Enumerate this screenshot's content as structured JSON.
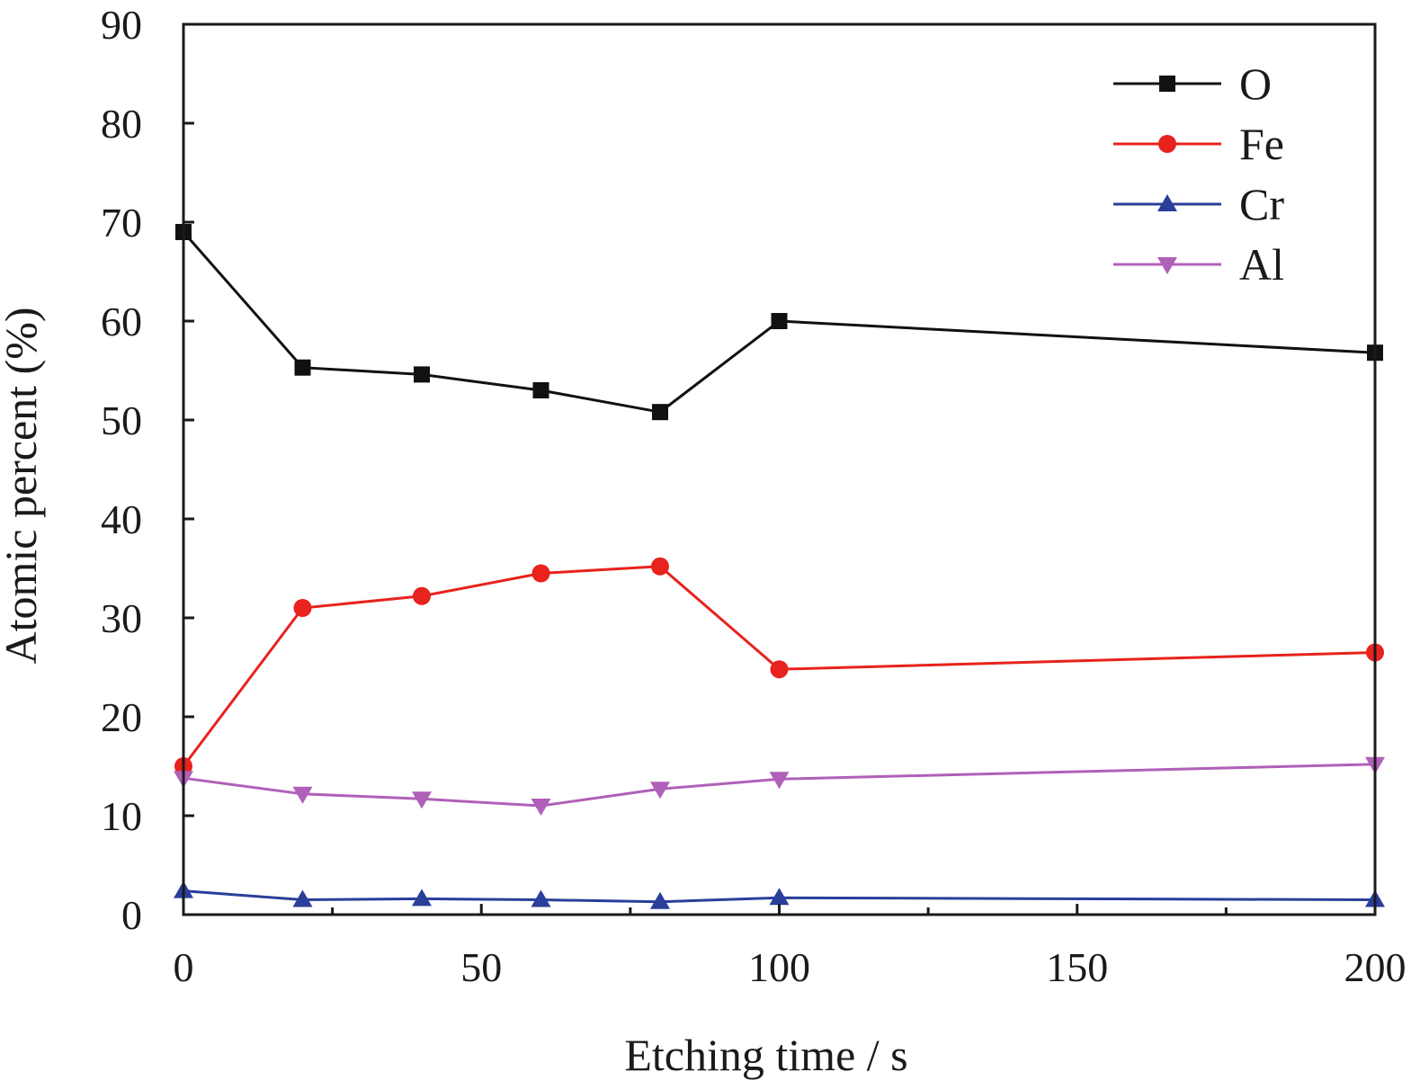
{
  "chart_data": {
    "type": "line",
    "title": "",
    "xlabel": "Etching time / s",
    "ylabel": "Atomic percent (%)",
    "xlim": [
      0,
      200
    ],
    "ylim": [
      0,
      90
    ],
    "xticks": [
      0,
      50,
      100,
      150,
      200
    ],
    "yticks": [
      0,
      10,
      20,
      30,
      40,
      50,
      60,
      70,
      80,
      90
    ],
    "x": [
      0,
      20,
      40,
      60,
      80,
      100,
      200
    ],
    "grid": false,
    "legend_position": "top-right",
    "series": [
      {
        "name": "O",
        "marker": "square",
        "color": "#111111",
        "values": [
          69.0,
          55.3,
          54.6,
          53.0,
          50.8,
          60.0,
          56.8
        ]
      },
      {
        "name": "Fe",
        "marker": "circle",
        "color": "#e8221c",
        "values": [
          15.0,
          31.0,
          32.2,
          34.5,
          35.2,
          24.8,
          26.5
        ]
      },
      {
        "name": "Cr",
        "marker": "triangle-up",
        "color": "#2a3f9a",
        "values": [
          2.4,
          1.5,
          1.6,
          1.5,
          1.3,
          1.7,
          1.5
        ]
      },
      {
        "name": "Al",
        "marker": "triangle-down",
        "color": "#b060b8",
        "values": [
          13.8,
          12.2,
          11.7,
          11.0,
          12.7,
          13.7,
          15.2
        ]
      }
    ]
  }
}
